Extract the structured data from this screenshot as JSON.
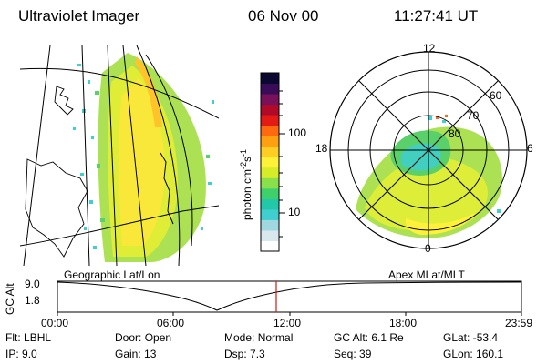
{
  "header": {
    "instrument": "Ultraviolet Imager",
    "date": "06 Nov 00",
    "time": "11:27:41 UT"
  },
  "geo_panel": {
    "label": "Geographic Lat/Lon"
  },
  "polar_panel": {
    "label": "Apex MLat/MLT",
    "mlt_labels": [
      "12",
      "18",
      "6",
      "0"
    ],
    "lat_labels": [
      "60",
      "70",
      "80"
    ]
  },
  "colorbar": {
    "unit_label": "photon cm",
    "unit_exp1": "-2",
    "unit_mid": "s",
    "unit_exp2": "-1",
    "tick_labels": [
      "100",
      "10"
    ],
    "colors": [
      "#ffffff",
      "#d8e8ec",
      "#9fd8e0",
      "#3fcfcf",
      "#23c8a8",
      "#3ed06a",
      "#8ae04a",
      "#d6ec28",
      "#fff13a",
      "#ffce24",
      "#ffa010",
      "#ff6a10",
      "#e41a14",
      "#b00a28",
      "#78105a",
      "#3a0c58",
      "#0a0830"
    ]
  },
  "timeline": {
    "axis_label": "GC Alt",
    "y_labels": [
      "9.0",
      "1.8"
    ],
    "x_labels": [
      "00:00",
      "06:00",
      "12:00",
      "18:00",
      "23:59"
    ],
    "marker_time": "11:27:41"
  },
  "status": {
    "row1": [
      {
        "key": "Flt:",
        "value": "LBHL"
      },
      {
        "key": "Door:",
        "value": "Open"
      },
      {
        "key": "Mode:",
        "value": "Normal"
      },
      {
        "key": "GC Alt:",
        "value": "6.1 Re"
      },
      {
        "key": "GLat:",
        "value": "-53.4"
      }
    ],
    "row2": [
      {
        "key": "IP:",
        "value": "9.0"
      },
      {
        "key": "Gain:",
        "value": "13"
      },
      {
        "key": "Dsp:",
        "value": "7.3"
      },
      {
        "key": "Seq:",
        "value": "39"
      },
      {
        "key": "GLon:",
        "value": "160.1"
      }
    ]
  }
}
